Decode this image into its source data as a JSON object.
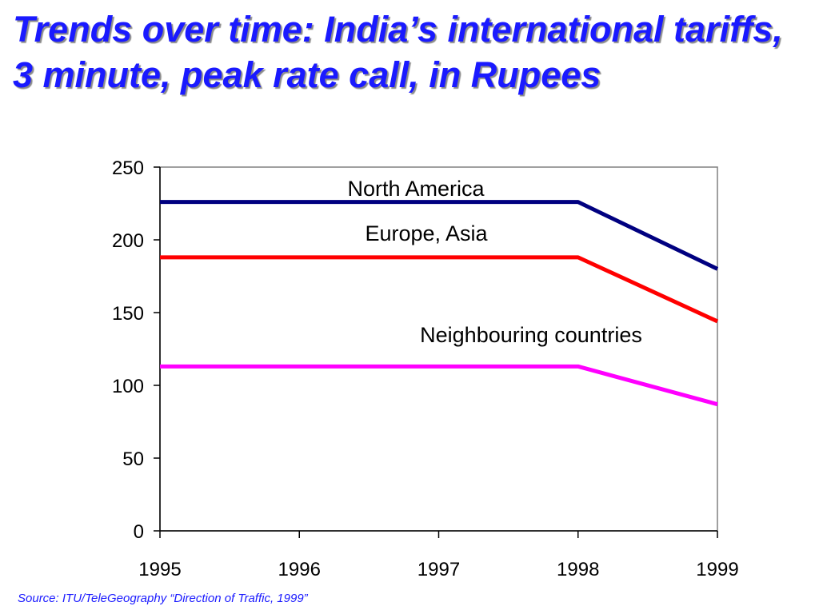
{
  "title": "Trends over time: India’s international tariffs, 3 minute, peak rate call, in Rupees",
  "source": "Source: ITU/TeleGeography “Direction of Traffic, 1999”",
  "colors": {
    "title": "#1a1aff",
    "north_america": "#000080",
    "europe_asia": "#ff0000",
    "neighbouring": "#ff00ff"
  },
  "chart_data": {
    "type": "line",
    "title": "Trends over time: India’s international tariffs, 3 minute, peak rate call, in Rupees",
    "xlabel": "",
    "ylabel": "",
    "x": [
      "1995",
      "1996",
      "1997",
      "1998",
      "1999"
    ],
    "ylim": [
      0,
      250
    ],
    "yticks": [
      "0",
      "50",
      "100",
      "150",
      "200",
      "250"
    ],
    "grid": false,
    "series": [
      {
        "name": "North America",
        "color": "#000080",
        "values": [
          226,
          226,
          226,
          226,
          180
        ]
      },
      {
        "name": "Europe, Asia",
        "color": "#ff0000",
        "values": [
          188,
          188,
          188,
          188,
          144
        ]
      },
      {
        "name": "Neighbouring countries",
        "color": "#ff00ff",
        "values": [
          113,
          113,
          113,
          113,
          87
        ]
      }
    ]
  }
}
